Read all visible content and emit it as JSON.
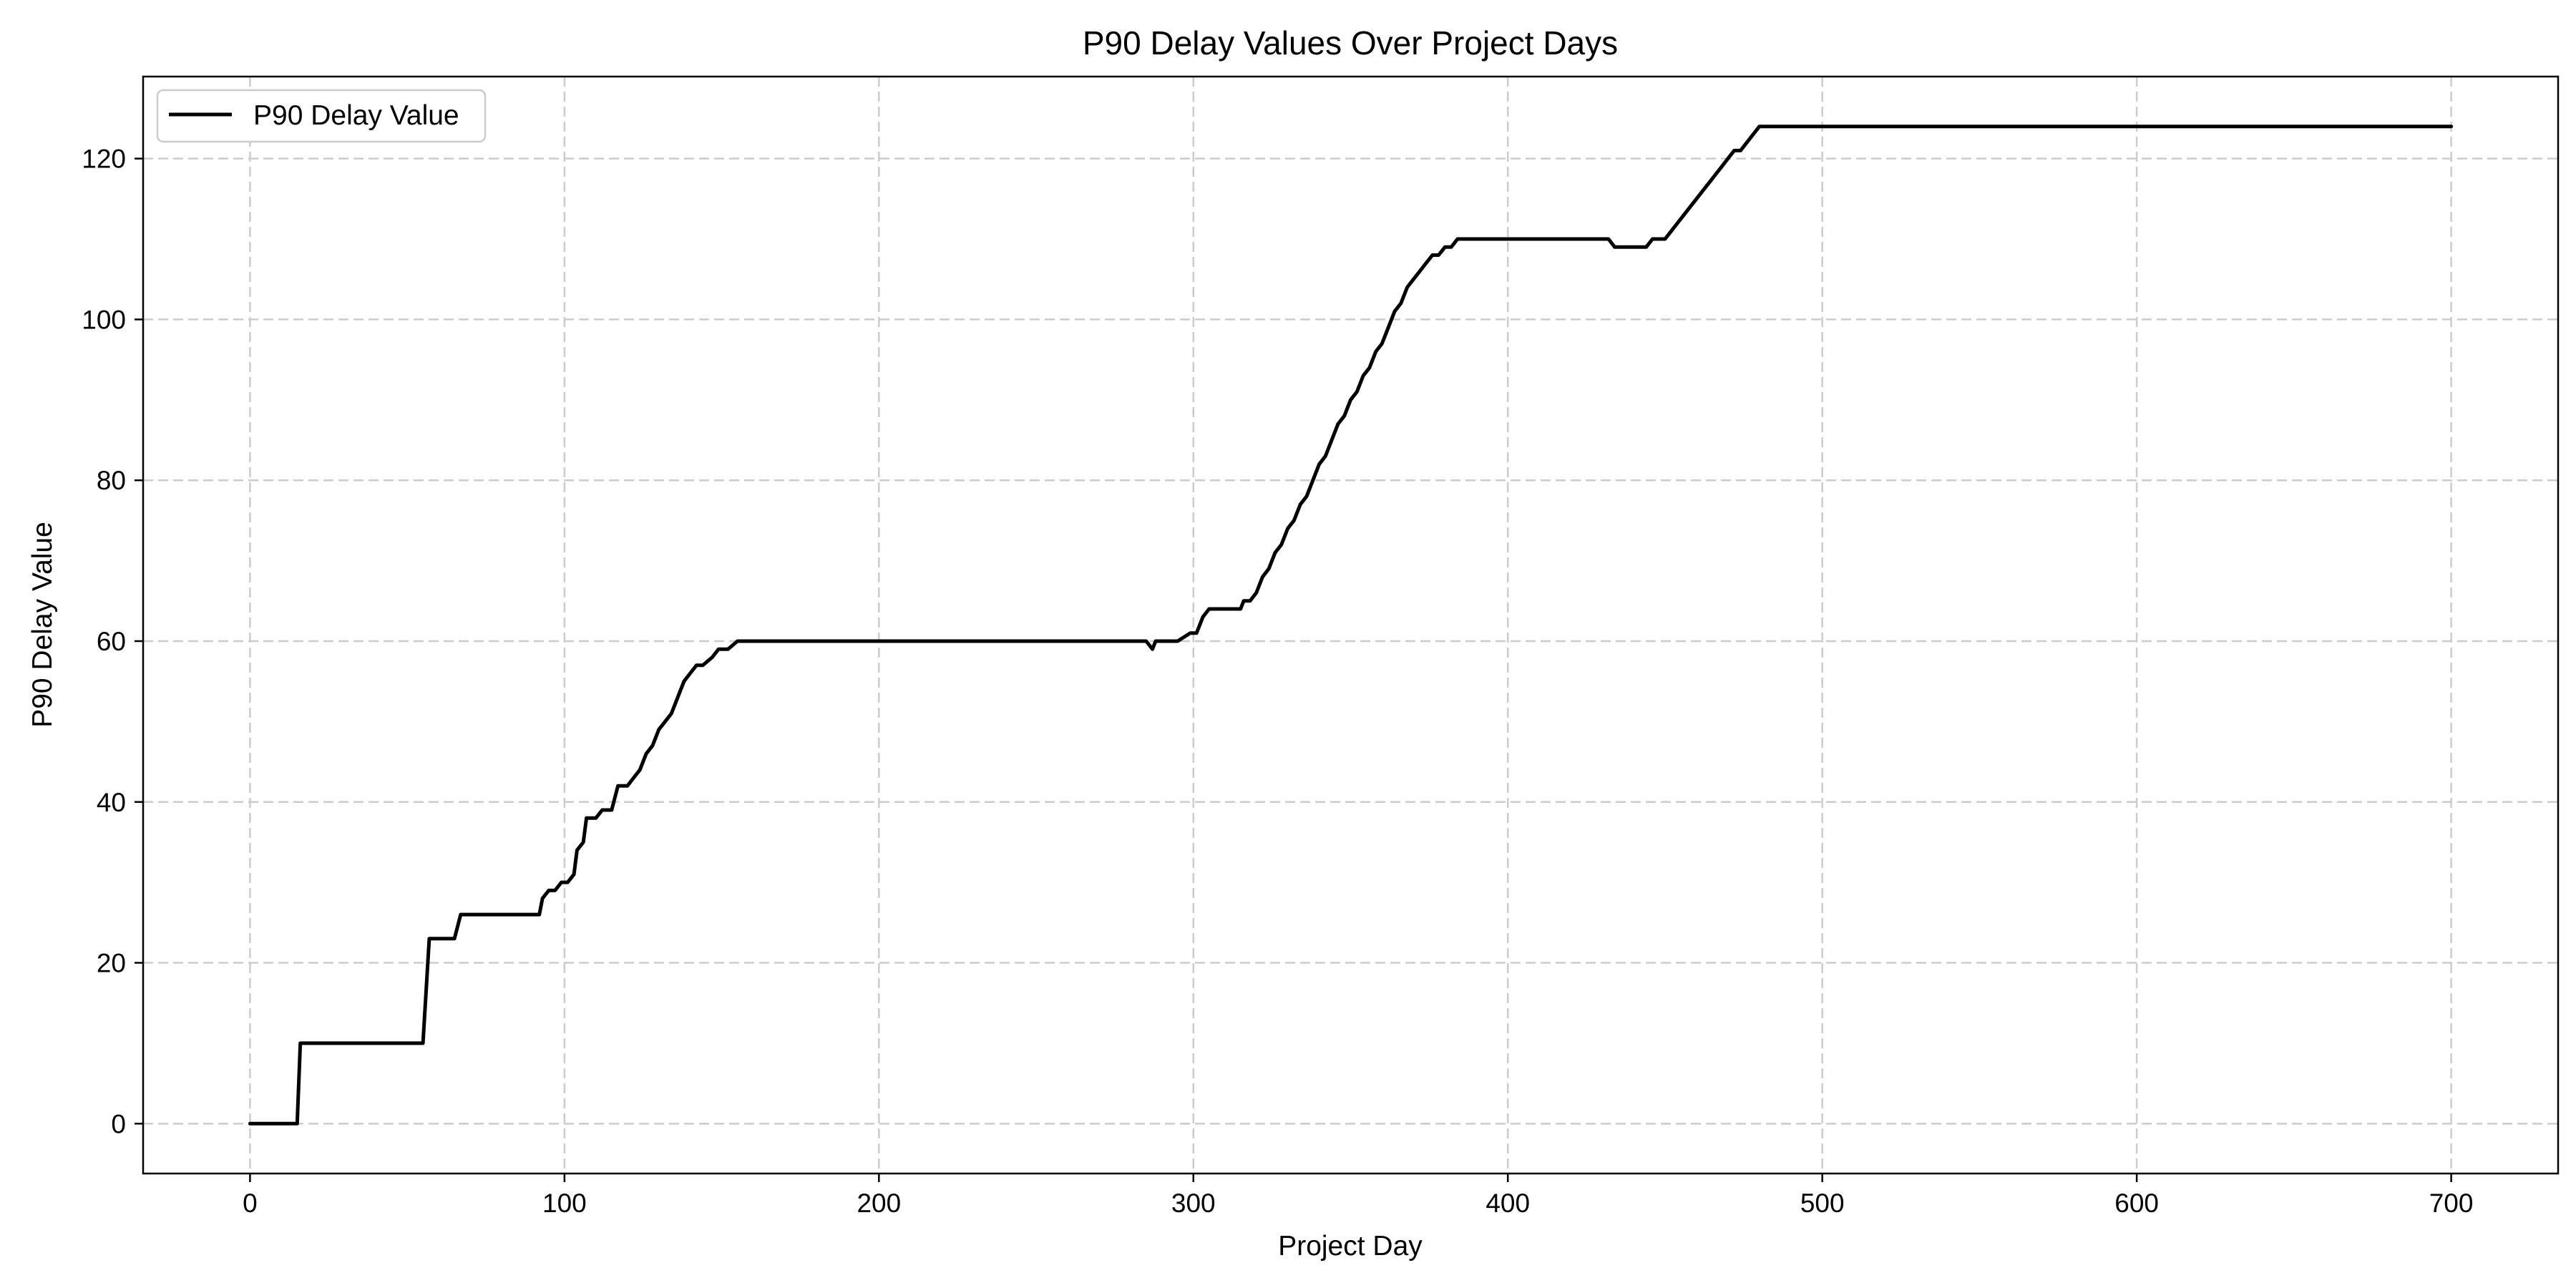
{
  "chart_data": {
    "type": "line",
    "title": "P90 Delay Values Over Project Days",
    "xlabel": "Project Day",
    "ylabel": "P90 Delay Value",
    "xlim": [
      -34,
      734
    ],
    "ylim": [
      -6.2,
      130.2
    ],
    "xticks": [
      0,
      100,
      200,
      300,
      400,
      500,
      600,
      700
    ],
    "yticks": [
      0,
      20,
      40,
      60,
      80,
      100,
      120
    ],
    "grid": true,
    "grid_style": "dashed",
    "legend": {
      "position": "upper-left"
    },
    "colors": {
      "line": "#000000",
      "grid": "#cccccc"
    },
    "series": [
      {
        "name": "P90 Delay Value",
        "x": [
          0,
          15,
          16,
          55,
          57,
          65,
          67,
          92,
          93,
          95,
          97,
          99,
          101,
          103,
          104,
          106,
          107,
          110,
          112,
          115,
          117,
          120,
          122,
          124,
          126,
          128,
          130,
          132,
          134,
          136,
          138,
          140,
          142,
          144,
          147,
          149,
          152,
          155,
          156,
          285,
          287,
          288,
          295,
          299,
          301,
          303,
          305,
          315,
          316,
          318,
          320,
          322,
          324,
          326,
          328,
          330,
          332,
          334,
          336,
          338,
          340,
          342,
          344,
          346,
          348,
          350,
          352,
          354,
          356,
          358,
          360,
          362,
          364,
          366,
          368,
          370,
          372,
          374,
          376,
          378,
          380,
          382,
          384,
          386,
          388,
          390,
          392,
          432,
          434,
          444,
          446,
          450,
          452,
          454,
          456,
          458,
          460,
          462,
          464,
          466,
          468,
          470,
          472,
          474,
          476,
          478,
          480,
          482,
          700
        ],
        "values": [
          0,
          0,
          10,
          10,
          23,
          23,
          26,
          26,
          28,
          29,
          29,
          30,
          30,
          31,
          34,
          35,
          38,
          38,
          39,
          39,
          42,
          42,
          43,
          44,
          46,
          47,
          49,
          50,
          51,
          53,
          55,
          56,
          57,
          57,
          58,
          59,
          59,
          60,
          60,
          60,
          59,
          60,
          60,
          61,
          61,
          63,
          64,
          64,
          65,
          65,
          66,
          68,
          69,
          71,
          72,
          74,
          75,
          77,
          78,
          80,
          82,
          83,
          85,
          87,
          88,
          90,
          91,
          93,
          94,
          96,
          97,
          99,
          101,
          102,
          104,
          105,
          106,
          107,
          108,
          108,
          109,
          109,
          110,
          110,
          110,
          110,
          110,
          110,
          109,
          109,
          110,
          110,
          111,
          112,
          113,
          114,
          115,
          116,
          117,
          118,
          119,
          120,
          121,
          121,
          122,
          123,
          124,
          124,
          124
        ]
      }
    ]
  }
}
